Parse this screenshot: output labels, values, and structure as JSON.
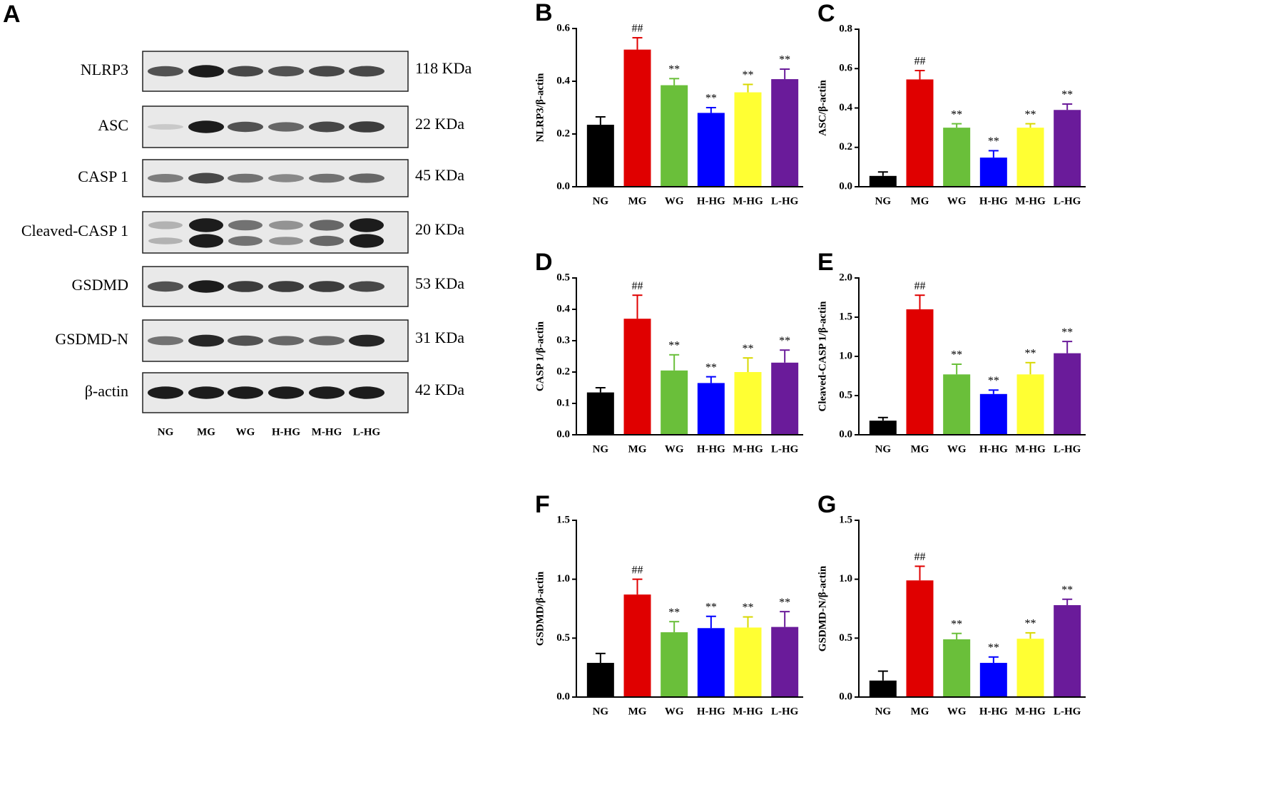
{
  "blot": {
    "label": "A",
    "rows": [
      {
        "name": "NLRP3",
        "size": "118 KDa"
      },
      {
        "name": "ASC",
        "size": "22 KDa"
      },
      {
        "name": "CASP 1",
        "size": "45 KDa"
      },
      {
        "name": "Cleaved-CASP 1",
        "size": "20 KDa"
      },
      {
        "name": "GSDMD",
        "size": "53 KDa"
      },
      {
        "name": "GSDMD-N",
        "size": "31 KDa"
      },
      {
        "name": "β-actin",
        "size": "42 KDa"
      }
    ],
    "lanes": [
      "NG",
      "MG",
      "WG",
      "H-HG",
      "M-HG",
      "L-HG"
    ]
  },
  "chart_data": [
    {
      "type": "bar",
      "title": "B",
      "ylabel": "NLRP3/β-actin",
      "categories": [
        "NG",
        "MG",
        "WG",
        "H-HG",
        "M-HG",
        "L-HG"
      ],
      "values": [
        0.235,
        0.52,
        0.385,
        0.28,
        0.358,
        0.408
      ],
      "errors": [
        0.03,
        0.045,
        0.025,
        0.02,
        0.03,
        0.038
      ],
      "annotations": [
        null,
        "##",
        "**",
        "**",
        "**",
        "**"
      ],
      "colors": [
        "#000000",
        "#e00000",
        "#6abf3a",
        "#0000ff",
        "#ffff33",
        "#6a1b9a"
      ],
      "ylim": [
        0,
        0.6
      ],
      "yticks": [
        {
          "value": 0,
          "label": "0.0"
        },
        0.2,
        0.4,
        0.6
      ]
    },
    {
      "type": "bar",
      "title": "C",
      "ylabel": "ASC/β-actin",
      "categories": [
        "NG",
        "MG",
        "WG",
        "H-HG",
        "M-HG",
        "L-HG"
      ],
      "values": [
        0.055,
        0.545,
        0.3,
        0.148,
        0.3,
        0.39
      ],
      "errors": [
        0.02,
        0.045,
        0.02,
        0.035,
        0.02,
        0.03
      ],
      "annotations": [
        null,
        "##",
        "**",
        "**",
        "**",
        "**"
      ],
      "colors": [
        "#000000",
        "#e00000",
        "#6abf3a",
        "#0000ff",
        "#ffff33",
        "#6a1b9a"
      ],
      "ylim": [
        0,
        0.8
      ],
      "yticks": [
        {
          "value": 0,
          "label": "0.0"
        },
        0.2,
        0.4,
        0.6,
        0.8
      ]
    },
    {
      "type": "bar",
      "title": "D",
      "ylabel": "CASP 1/β-actin",
      "categories": [
        "NG",
        "MG",
        "WG",
        "H-HG",
        "M-HG",
        "L-HG"
      ],
      "values": [
        0.135,
        0.37,
        0.205,
        0.165,
        0.2,
        0.23
      ],
      "errors": [
        0.015,
        0.075,
        0.05,
        0.02,
        0.045,
        0.04
      ],
      "annotations": [
        null,
        "##",
        "**",
        "**",
        "**",
        "**"
      ],
      "colors": [
        "#000000",
        "#e00000",
        "#6abf3a",
        "#0000ff",
        "#ffff33",
        "#6a1b9a"
      ],
      "ylim": [
        0,
        0.5
      ],
      "yticks": [
        {
          "value": 0,
          "label": "0.0"
        },
        0.1,
        0.2,
        0.3,
        0.4,
        0.5
      ]
    },
    {
      "type": "bar",
      "title": "E",
      "ylabel": "Cleaved-CASP 1/β-actin",
      "categories": [
        "NG",
        "MG",
        "WG",
        "H-HG",
        "M-HG",
        "L-HG"
      ],
      "values": [
        0.18,
        1.6,
        0.77,
        0.52,
        0.77,
        1.04
      ],
      "errors": [
        0.04,
        0.18,
        0.13,
        0.05,
        0.15,
        0.15
      ],
      "annotations": [
        null,
        "##",
        "**",
        "**",
        "**",
        "**"
      ],
      "colors": [
        "#000000",
        "#e00000",
        "#6abf3a",
        "#0000ff",
        "#ffff33",
        "#6a1b9a"
      ],
      "ylim": [
        0,
        2
      ],
      "yticks": [
        {
          "value": 0,
          "label": "0.0"
        },
        0.5,
        {
          "value": 1,
          "label": "1.0"
        },
        1.5,
        {
          "value": 2,
          "label": "2.0"
        }
      ]
    },
    {
      "type": "bar",
      "title": "F",
      "ylabel": "GSDMD/β-actin",
      "categories": [
        "NG",
        "MG",
        "WG",
        "H-HG",
        "M-HG",
        "L-HG"
      ],
      "values": [
        0.29,
        0.87,
        0.55,
        0.585,
        0.59,
        0.595
      ],
      "errors": [
        0.08,
        0.13,
        0.09,
        0.1,
        0.09,
        0.13
      ],
      "annotations": [
        null,
        "##",
        "**",
        "**",
        "**",
        "**"
      ],
      "colors": [
        "#000000",
        "#e00000",
        "#6abf3a",
        "#0000ff",
        "#ffff33",
        "#6a1b9a"
      ],
      "ylim": [
        0,
        1.5
      ],
      "yticks": [
        {
          "value": 0,
          "label": "0.0"
        },
        0.5,
        {
          "value": 1,
          "label": "1.0"
        },
        1.5
      ]
    },
    {
      "type": "bar",
      "title": "G",
      "ylabel": "GSDMD-N/β-actin",
      "categories": [
        "NG",
        "MG",
        "WG",
        "H-HG",
        "M-HG",
        "L-HG"
      ],
      "values": [
        0.14,
        0.99,
        0.49,
        0.29,
        0.495,
        0.78
      ],
      "errors": [
        0.08,
        0.12,
        0.05,
        0.05,
        0.05,
        0.05
      ],
      "annotations": [
        null,
        "##",
        "**",
        "**",
        "**",
        "**"
      ],
      "colors": [
        "#000000",
        "#e00000",
        "#6abf3a",
        "#0000ff",
        "#ffff33",
        "#6a1b9a"
      ],
      "ylim": [
        0,
        1.5
      ],
      "yticks": [
        {
          "value": 0,
          "label": "0.0"
        },
        0.5,
        {
          "value": 1,
          "label": "1.0"
        },
        1.5
      ]
    }
  ]
}
